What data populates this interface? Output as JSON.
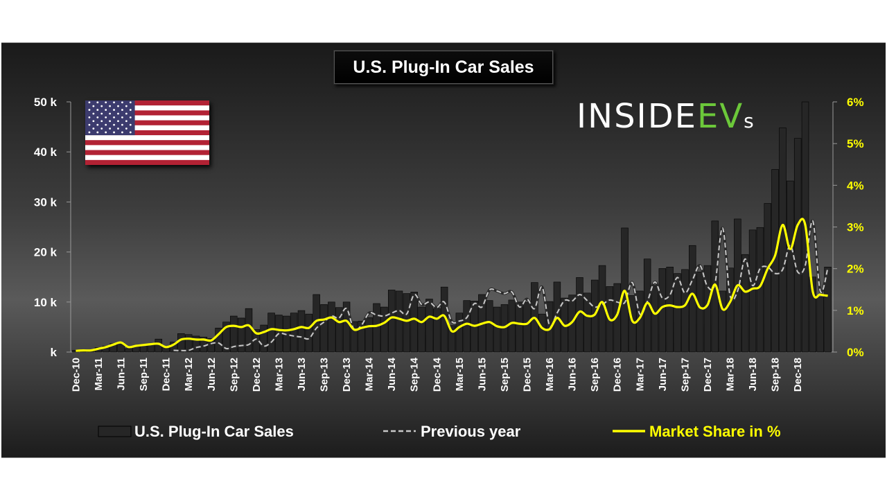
{
  "chart_data": {
    "type": "bar",
    "title": "U.S. Plug-In Car Sales",
    "left_ticks": [
      "k",
      "10 k",
      "20 k",
      "30 k",
      "40 k",
      "50 k"
    ],
    "right_ticks": [
      "0%",
      "1%",
      "2%",
      "3%",
      "4%",
      "5%",
      "6%"
    ],
    "ylim_left": [
      0,
      50000
    ],
    "ylim_right": [
      0,
      6
    ],
    "x_labels": [
      "Dec-10",
      "Mar-11",
      "Jun-11",
      "Sep-11",
      "Dec-11",
      "Mar-12",
      "Jun-12",
      "Sep-12",
      "Dec-12",
      "Mar-13",
      "Jun-13",
      "Sep-13",
      "Dec-13",
      "Mar-14",
      "Jun-14",
      "Sep-14",
      "Dec-14",
      "Mar-15",
      "Jun-15",
      "Sep-15",
      "Dec-15",
      "Mar-16",
      "Jun-16",
      "Sep-16",
      "Dec-16",
      "Mar-17",
      "Jun-17",
      "Sep-17",
      "Dec-17",
      "Mar-18",
      "Jun-18",
      "Sep-18",
      "Dec-18"
    ],
    "series": [
      {
        "name": "U.S. Plug-In Car Sales",
        "kind": "bar",
        "axis": "left",
        "color": "#262626",
        "values": [
          350,
          300,
          350,
          900,
          1200,
          1700,
          1800,
          700,
          1100,
          1300,
          1500,
          2600,
          1200,
          2000,
          3700,
          3500,
          3200,
          3000,
          2700,
          4800,
          6000,
          7200,
          6800,
          8700,
          4500,
          5400,
          7800,
          7400,
          7200,
          7800,
          8300,
          7600,
          11500,
          9500,
          10000,
          8900,
          10000,
          6100,
          6200,
          6900,
          9700,
          9000,
          12400,
          12200,
          11700,
          12000,
          9000,
          10600,
          8700,
          13000,
          5300,
          7800,
          10300,
          10200,
          11500,
          10300,
          9000,
          9500,
          10400,
          10000,
          9900,
          13900,
          7600,
          10100,
          14000,
          10800,
          11400,
          14900,
          11800,
          14400,
          17300,
          13100,
          13700,
          24800,
          11300,
          12200,
          18600,
          13300,
          16700,
          17000,
          15700,
          16500,
          21300,
          16000,
          17300,
          26200,
          12200,
          16800,
          26600,
          19500,
          24400,
          24900,
          29700,
          36500,
          44800,
          34200,
          42700,
          50000,
          15000,
          11000,
          17000
        ]
      },
      {
        "name": "Previous year",
        "kind": "line-dashed",
        "axis": "left",
        "color": "#c8c8c8",
        "values": [
          null,
          null,
          null,
          null,
          null,
          null,
          null,
          null,
          null,
          null,
          null,
          null,
          null,
          350,
          300,
          350,
          900,
          1200,
          1700,
          1800,
          700,
          1100,
          1300,
          1500,
          2600,
          1200,
          2000,
          3700,
          3500,
          3200,
          3000,
          2700,
          4800,
          6000,
          7200,
          6800,
          8700,
          4500,
          5400,
          7800,
          7400,
          7200,
          7800,
          8300,
          7600,
          11500,
          9500,
          10000,
          8900,
          10000,
          6100,
          6200,
          6900,
          9700,
          9000,
          12400,
          12200,
          11700,
          12000,
          9000,
          10600,
          8700,
          13000,
          5300,
          7800,
          10300,
          10200,
          11500,
          10300,
          9000,
          9500,
          10400,
          10000,
          9900,
          13900,
          7600,
          10100,
          14000,
          10800,
          11400,
          14900,
          11800,
          14400,
          17300,
          13100,
          13700,
          24800,
          11300,
          12200,
          18600,
          13300,
          16700,
          17000,
          15700,
          16500,
          21300,
          16000,
          17300,
          26200,
          12200,
          16800
        ]
      },
      {
        "name": "Market Share in %",
        "kind": "line",
        "axis": "right",
        "color": "#ffff00",
        "values": [
          0.03,
          0.04,
          0.04,
          0.08,
          0.12,
          0.18,
          0.23,
          0.12,
          0.15,
          0.17,
          0.19,
          0.2,
          0.12,
          0.18,
          0.3,
          0.32,
          0.3,
          0.3,
          0.28,
          0.43,
          0.6,
          0.63,
          0.6,
          0.64,
          0.45,
          0.48,
          0.55,
          0.53,
          0.52,
          0.55,
          0.6,
          0.58,
          0.75,
          0.78,
          0.83,
          0.72,
          0.75,
          0.54,
          0.58,
          0.62,
          0.63,
          0.7,
          0.83,
          0.8,
          0.75,
          0.8,
          0.72,
          0.85,
          0.8,
          0.87,
          0.5,
          0.6,
          0.68,
          0.63,
          0.68,
          0.72,
          0.62,
          0.6,
          0.7,
          0.68,
          0.68,
          0.82,
          0.58,
          0.55,
          0.82,
          0.63,
          0.72,
          0.97,
          0.87,
          0.9,
          1.2,
          0.78,
          0.9,
          1.47,
          0.75,
          0.82,
          1.18,
          0.92,
          1.08,
          1.12,
          1.08,
          1.12,
          1.4,
          1.07,
          1.13,
          1.62,
          1.03,
          1.2,
          1.6,
          1.45,
          1.52,
          1.58,
          2.0,
          2.32,
          3.05,
          2.47,
          3.05,
          3.05,
          1.45,
          1.38,
          1.35
        ]
      }
    ],
    "legend": [
      "U.S. Plug-In Car Sales",
      "Previous year",
      "Market Share in %"
    ],
    "legend_position": "bottom"
  },
  "logo": {
    "left": "INSIDE",
    "accent": "EV",
    "suffix": "s"
  },
  "colors": {
    "bar": "#262626",
    "previous_year": "#c8c8c8",
    "market_share": "#ffff00",
    "flag_red": "#b22234",
    "flag_blue": "#3c3b6e"
  }
}
